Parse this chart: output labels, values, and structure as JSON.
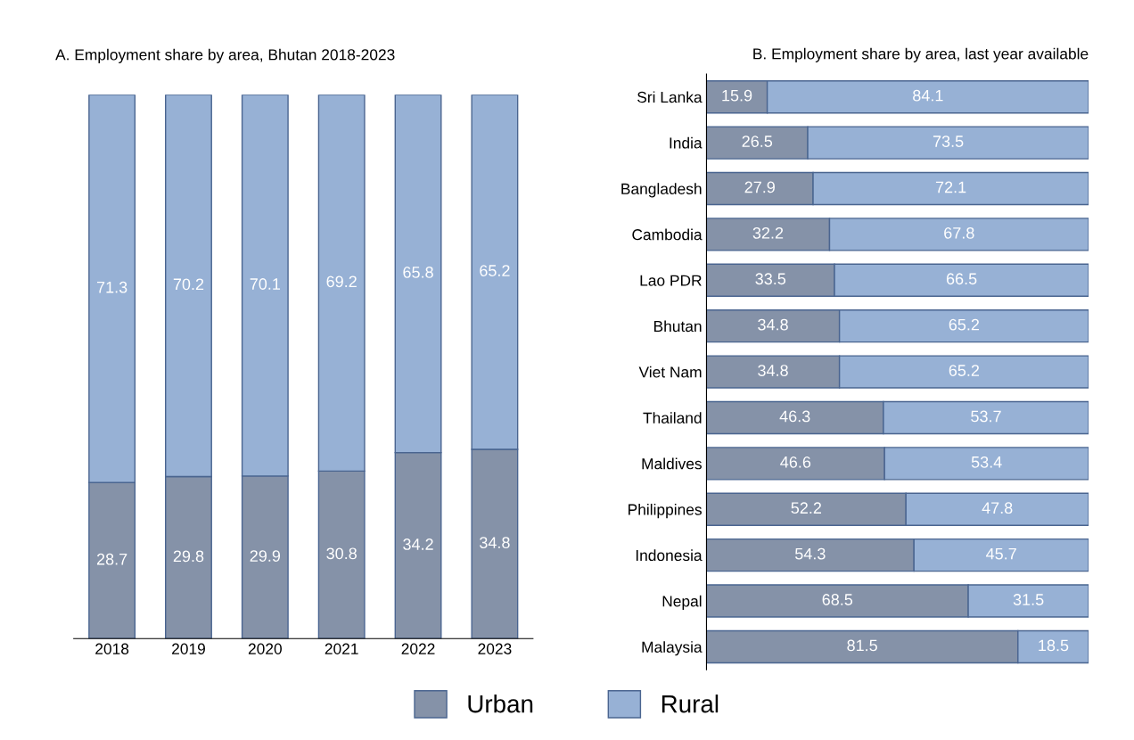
{
  "chart_data": [
    {
      "type": "bar",
      "title": "A. Employment share by area, Bhutan 2018-2023",
      "stacked": true,
      "categories": [
        "2018",
        "2019",
        "2020",
        "2021",
        "2022",
        "2023"
      ],
      "ylim": [
        0,
        100
      ],
      "tick_labels": "x",
      "data_labels": true,
      "grid": false,
      "legend": "bottom",
      "series": [
        {
          "name": "Urban",
          "color": "#8592a8",
          "values": [
            28.7,
            29.8,
            29.9,
            30.8,
            34.2,
            34.8
          ]
        },
        {
          "name": "Rural",
          "color": "#97b1d5",
          "values": [
            71.3,
            70.2,
            70.1,
            69.2,
            65.8,
            65.2
          ]
        }
      ]
    },
    {
      "type": "bar",
      "title": "B. Employment share by area, last year available",
      "stacked": true,
      "orientation": "horizontal",
      "categories": [
        "Sri Lanka",
        "India",
        "Bangladesh",
        "Cambodia",
        "Lao PDR",
        "Bhutan",
        "Viet Nam",
        "Thailand",
        "Maldives",
        "Philippines",
        "Indonesia",
        "Nepal",
        "Malaysia"
      ],
      "xlim": [
        0,
        100
      ],
      "tick_labels": "y",
      "data_labels": true,
      "grid": false,
      "series": [
        {
          "color": "#8592a8",
          "values": [
            15.9,
            26.5,
            27.9,
            32.2,
            33.5,
            34.8,
            34.8,
            46.3,
            46.6,
            52.2,
            54.3,
            68.5,
            81.5
          ]
        },
        {
          "color": "#97b1d5",
          "values": [
            84.1,
            73.5,
            72.1,
            67.8,
            66.5,
            65.2,
            65.2,
            53.7,
            53.4,
            47.8,
            45.7,
            31.5,
            18.5
          ]
        }
      ]
    }
  ]
}
